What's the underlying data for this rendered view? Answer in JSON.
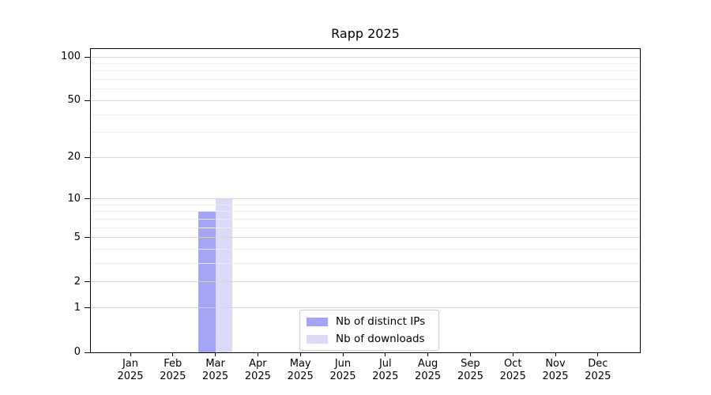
{
  "page": {
    "background": "#ffffff"
  },
  "chart_data": {
    "type": "bar",
    "title": "Rapp 2025",
    "categories": [
      "Jan 2025",
      "Feb 2025",
      "Mar 2025",
      "Apr 2025",
      "May 2025",
      "Jun 2025",
      "Jul 2025",
      "Aug 2025",
      "Sep 2025",
      "Oct 2025",
      "Nov 2025",
      "Dec 2025"
    ],
    "series": [
      {
        "name": "Nb of distinct IPs",
        "color": "#8f8ff2",
        "values": [
          0,
          0,
          8,
          0,
          0,
          0,
          0,
          0,
          0,
          0,
          0,
          0
        ]
      },
      {
        "name": "Nb of downloads",
        "color": "#d2d2f7",
        "values": [
          0,
          0,
          10,
          0,
          0,
          0,
          0,
          0,
          0,
          0,
          0,
          0
        ]
      }
    ],
    "xlabel": "",
    "ylabel": "",
    "yscale": "log1p",
    "ylim": [
      0,
      100
    ],
    "y_ticks": [
      0,
      1,
      2,
      5,
      10,
      20,
      50,
      100
    ],
    "y_minor_ticks": [
      3,
      4,
      6,
      7,
      8,
      9,
      30,
      40,
      60,
      70,
      80,
      90
    ],
    "grid": "horizontal",
    "legend_position": "inside-bottom-center"
  },
  "colors": {
    "axis": "#000000",
    "grid_major": "#d4d4d4",
    "grid_minor": "#eeeeee",
    "legend_border": "#cccccc",
    "text": "#000000"
  }
}
